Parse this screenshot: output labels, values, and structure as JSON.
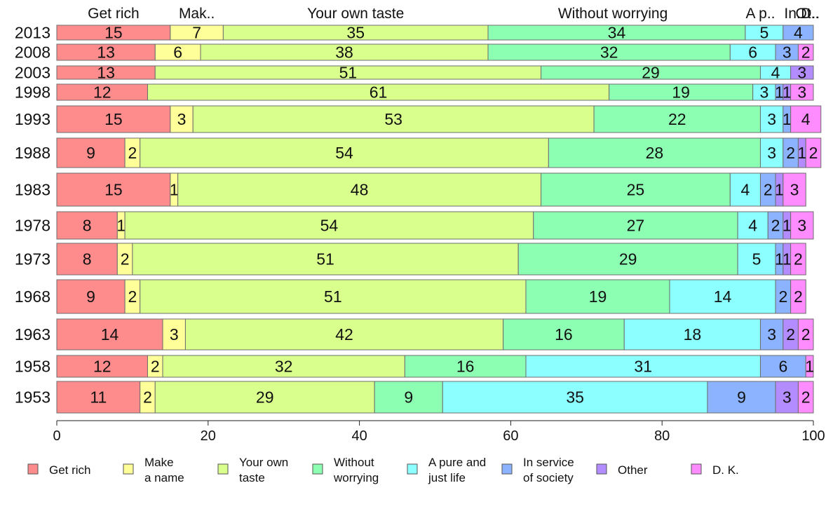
{
  "chart_data": {
    "type": "bar",
    "orientation": "horizontal",
    "stacked": true,
    "xlim": [
      0,
      100
    ],
    "x_ticks": [
      "0",
      "20",
      "40",
      "60",
      "80",
      "100"
    ],
    "categories": [
      "2013",
      "2008",
      "2003",
      "1998",
      "1993",
      "1988",
      "1983",
      "1978",
      "1973",
      "1968",
      "1963",
      "1958",
      "1953"
    ],
    "series": [
      {
        "name": "Get rich",
        "color": "#ff8c8c",
        "values": [
          15,
          13,
          13,
          12,
          15,
          9,
          15,
          8,
          8,
          9,
          14,
          12,
          11
        ]
      },
      {
        "name": "Make a name",
        "color": "#ffff99",
        "values": [
          7,
          6,
          0,
          0,
          3,
          2,
          1,
          1,
          2,
          2,
          3,
          2,
          2
        ]
      },
      {
        "name": "Your own taste",
        "color": "#d9ff8c",
        "values": [
          35,
          38,
          51,
          61,
          53,
          54,
          48,
          54,
          51,
          51,
          42,
          32,
          29
        ]
      },
      {
        "name": "Without worrying",
        "color": "#8cffb3",
        "values": [
          34,
          32,
          29,
          19,
          22,
          28,
          25,
          27,
          29,
          19,
          16,
          16,
          9
        ]
      },
      {
        "name": "A pure and just life",
        "color": "#8cffff",
        "values": [
          5,
          6,
          4,
          3,
          3,
          3,
          4,
          4,
          5,
          14,
          18,
          31,
          35
        ]
      },
      {
        "name": "In service of society",
        "color": "#8cb3ff",
        "values": [
          4,
          3,
          0,
          1,
          1,
          2,
          2,
          2,
          1,
          2,
          3,
          6,
          9
        ]
      },
      {
        "name": "Other",
        "color": "#b38cff",
        "values": [
          0,
          0,
          3,
          1,
          0,
          1,
          1,
          1,
          1,
          0,
          2,
          0,
          3
        ]
      },
      {
        "name": "D. K.",
        "color": "#ff8cff",
        "values": [
          0,
          2,
          0,
          3,
          4,
          2,
          3,
          3,
          2,
          2,
          2,
          1,
          2
        ]
      }
    ],
    "top_labels": [
      {
        "text": "Get rich",
        "x": 7.5
      },
      {
        "text": "Mak..",
        "x": 18.5
      },
      {
        "text": "Your own taste",
        "x": 39.5
      },
      {
        "text": "Without worrying",
        "x": 73.5
      },
      {
        "text": "A p..",
        "x": 93.0
      },
      {
        "text": "In..",
        "x": 97.5
      },
      {
        "text": "Ot..",
        "x": 99.2
      },
      {
        "text": "D..",
        "x": 99.6
      }
    ],
    "legend_position": "bottom",
    "legend": [
      {
        "lines": [
          "Get rich"
        ],
        "color": "#ff8c8c"
      },
      {
        "lines": [
          "Make",
          "a name"
        ],
        "color": "#ffff99"
      },
      {
        "lines": [
          "Your own",
          "taste"
        ],
        "color": "#d9ff8c"
      },
      {
        "lines": [
          "Without",
          "worrying"
        ],
        "color": "#8cffb3"
      },
      {
        "lines": [
          "A pure and",
          "just life"
        ],
        "color": "#8cffff"
      },
      {
        "lines": [
          "In service",
          "of society"
        ],
        "color": "#8cb3ff"
      },
      {
        "lines": [
          "Other"
        ],
        "color": "#b38cff"
      },
      {
        "lines": [
          "D. K."
        ],
        "color": "#ff8cff"
      }
    ]
  }
}
